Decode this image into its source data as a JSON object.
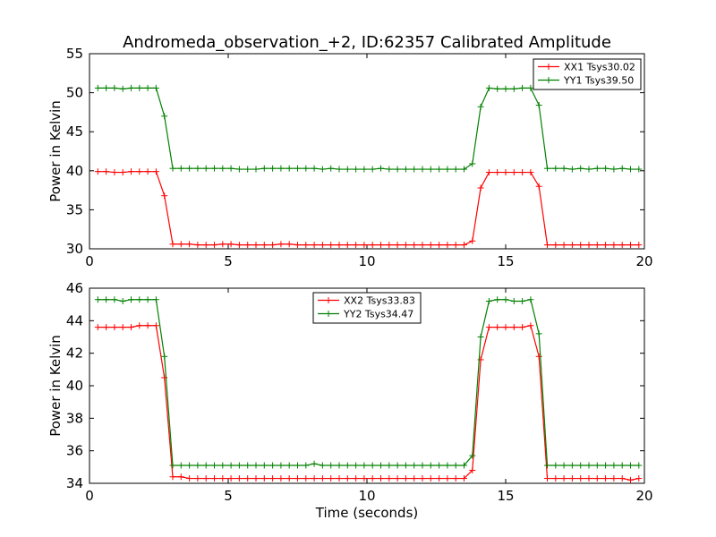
{
  "chart_data": [
    {
      "type": "line",
      "title": "Andromeda_observation_+2, ID:62357 Calibrated Amplitude",
      "xlabel": "",
      "ylabel": "Power in Kelvin",
      "xlim": [
        0,
        20
      ],
      "ylim": [
        30,
        55
      ],
      "xticks": [
        "0",
        "5",
        "10",
        "15",
        "20"
      ],
      "yticks": [
        "30",
        "35",
        "40",
        "45",
        "50",
        "55"
      ],
      "legend_position": "top-right",
      "grid": false,
      "x": [
        0.3,
        0.6,
        0.9,
        1.2,
        1.5,
        1.8,
        2.1,
        2.4,
        2.7,
        3.0,
        3.3,
        3.6,
        3.9,
        4.2,
        4.5,
        4.8,
        5.1,
        5.4,
        5.7,
        6.0,
        6.3,
        6.6,
        6.9,
        7.2,
        7.5,
        7.8,
        8.1,
        8.4,
        8.7,
        9.0,
        9.3,
        9.6,
        9.9,
        10.2,
        10.5,
        10.8,
        11.1,
        11.4,
        11.7,
        12.0,
        12.3,
        12.6,
        12.9,
        13.2,
        13.5,
        13.8,
        14.1,
        14.4,
        14.7,
        15.0,
        15.3,
        15.6,
        15.9,
        16.2,
        16.5,
        16.8,
        17.1,
        17.4,
        17.7,
        18.0,
        18.3,
        18.6,
        18.9,
        19.2,
        19.5,
        19.8
      ],
      "series": [
        {
          "name": "XX1 Tsys30.02",
          "color": "#ff0000",
          "values": [
            39.9,
            39.9,
            39.8,
            39.8,
            39.9,
            39.9,
            39.9,
            39.9,
            36.8,
            30.6,
            30.6,
            30.6,
            30.5,
            30.5,
            30.5,
            30.6,
            30.6,
            30.5,
            30.5,
            30.5,
            30.5,
            30.5,
            30.6,
            30.6,
            30.5,
            30.5,
            30.5,
            30.5,
            30.5,
            30.5,
            30.5,
            30.5,
            30.5,
            30.5,
            30.5,
            30.5,
            30.5,
            30.5,
            30.5,
            30.5,
            30.5,
            30.5,
            30.5,
            30.5,
            30.5,
            31.0,
            37.8,
            39.8,
            39.8,
            39.8,
            39.8,
            39.8,
            39.8,
            38.0,
            30.5,
            30.5,
            30.5,
            30.5,
            30.5,
            30.5,
            30.5,
            30.5,
            30.5,
            30.5,
            30.5,
            30.5
          ]
        },
        {
          "name": "YY1 Tsys39.50",
          "color": "#008000",
          "values": [
            50.6,
            50.6,
            50.6,
            50.5,
            50.6,
            50.6,
            50.6,
            50.6,
            47.0,
            40.3,
            40.3,
            40.3,
            40.3,
            40.3,
            40.3,
            40.3,
            40.3,
            40.2,
            40.2,
            40.2,
            40.3,
            40.3,
            40.3,
            40.3,
            40.3,
            40.3,
            40.3,
            40.2,
            40.3,
            40.2,
            40.2,
            40.2,
            40.2,
            40.2,
            40.3,
            40.2,
            40.2,
            40.2,
            40.2,
            40.2,
            40.2,
            40.2,
            40.2,
            40.2,
            40.2,
            40.9,
            48.2,
            50.6,
            50.5,
            50.5,
            50.5,
            50.6,
            50.6,
            48.4,
            40.3,
            40.3,
            40.3,
            40.2,
            40.3,
            40.2,
            40.3,
            40.3,
            40.2,
            40.3,
            40.2,
            40.2
          ]
        }
      ]
    },
    {
      "type": "line",
      "title": "",
      "xlabel": "Time (seconds)",
      "ylabel": "Power in Kelvin",
      "xlim": [
        0,
        20
      ],
      "ylim": [
        34,
        46
      ],
      "xticks": [
        "0",
        "5",
        "10",
        "15",
        "20"
      ],
      "yticks": [
        "34",
        "36",
        "38",
        "40",
        "42",
        "44",
        "46"
      ],
      "legend_position": "top-center",
      "grid": false,
      "x": [
        0.3,
        0.6,
        0.9,
        1.2,
        1.5,
        1.8,
        2.1,
        2.4,
        2.7,
        3.0,
        3.3,
        3.6,
        3.9,
        4.2,
        4.5,
        4.8,
        5.1,
        5.4,
        5.7,
        6.0,
        6.3,
        6.6,
        6.9,
        7.2,
        7.5,
        7.8,
        8.1,
        8.4,
        8.7,
        9.0,
        9.3,
        9.6,
        9.9,
        10.2,
        10.5,
        10.8,
        11.1,
        11.4,
        11.7,
        12.0,
        12.3,
        12.6,
        12.9,
        13.2,
        13.5,
        13.8,
        14.1,
        14.4,
        14.7,
        15.0,
        15.3,
        15.6,
        15.9,
        16.2,
        16.5,
        16.8,
        17.1,
        17.4,
        17.7,
        18.0,
        18.3,
        18.6,
        18.9,
        19.2,
        19.5,
        19.8
      ],
      "series": [
        {
          "name": "XX2 Tsys33.83",
          "color": "#ff0000",
          "values": [
            43.6,
            43.6,
            43.6,
            43.6,
            43.6,
            43.7,
            43.7,
            43.7,
            40.5,
            34.4,
            34.4,
            34.3,
            34.3,
            34.3,
            34.3,
            34.3,
            34.3,
            34.3,
            34.3,
            34.3,
            34.3,
            34.3,
            34.3,
            34.3,
            34.3,
            34.3,
            34.3,
            34.3,
            34.3,
            34.3,
            34.3,
            34.3,
            34.3,
            34.3,
            34.3,
            34.3,
            34.3,
            34.3,
            34.3,
            34.3,
            34.3,
            34.3,
            34.3,
            34.3,
            34.3,
            34.8,
            41.6,
            43.6,
            43.6,
            43.6,
            43.6,
            43.6,
            43.7,
            41.8,
            34.3,
            34.3,
            34.3,
            34.3,
            34.3,
            34.3,
            34.3,
            34.3,
            34.3,
            34.3,
            34.2,
            34.3
          ]
        },
        {
          "name": "YY2 Tsys34.47",
          "color": "#008000",
          "values": [
            45.3,
            45.3,
            45.3,
            45.2,
            45.3,
            45.3,
            45.3,
            45.3,
            41.8,
            35.1,
            35.1,
            35.1,
            35.1,
            35.1,
            35.1,
            35.1,
            35.1,
            35.1,
            35.1,
            35.1,
            35.1,
            35.1,
            35.1,
            35.1,
            35.1,
            35.1,
            35.2,
            35.1,
            35.1,
            35.1,
            35.1,
            35.1,
            35.1,
            35.1,
            35.1,
            35.1,
            35.1,
            35.1,
            35.1,
            35.1,
            35.1,
            35.1,
            35.1,
            35.1,
            35.1,
            35.7,
            43.0,
            45.2,
            45.3,
            45.3,
            45.2,
            45.2,
            45.3,
            43.2,
            35.1,
            35.1,
            35.1,
            35.1,
            35.1,
            35.1,
            35.1,
            35.1,
            35.1,
            35.1,
            35.1,
            35.1
          ]
        }
      ]
    }
  ]
}
